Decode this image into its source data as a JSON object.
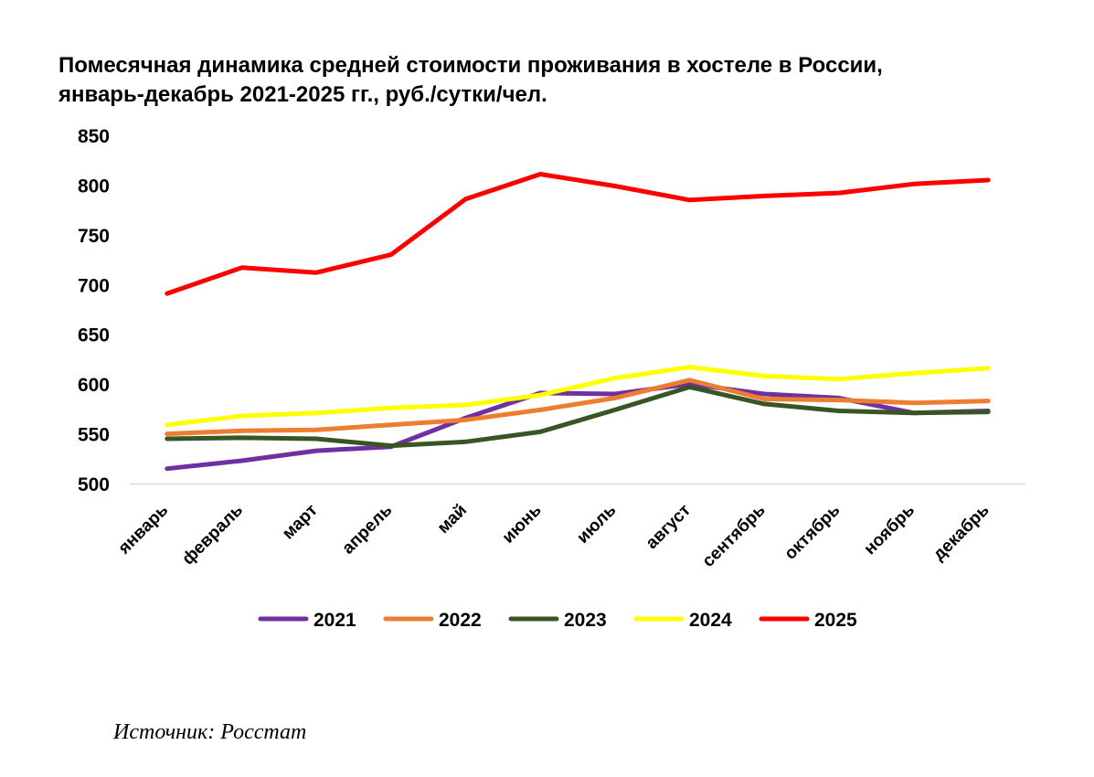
{
  "chart_data": {
    "type": "line",
    "title_lines": [
      "Помесячная динамика средней стоимости проживания в хостеле в России,",
      "январь-декабрь 2021-2025 гг., руб./сутки/чел."
    ],
    "xlabel": "",
    "ylabel": "",
    "categories": [
      "январь",
      "февраль",
      "март",
      "апрель",
      "май",
      "июнь",
      "июль",
      "август",
      "сентябрь",
      "октябрь",
      "ноябрь",
      "декабрь"
    ],
    "ylim": [
      500,
      850
    ],
    "yticks": [
      500,
      550,
      600,
      650,
      700,
      750,
      800,
      850
    ],
    "grid": false,
    "legend_position": "bottom",
    "series": [
      {
        "name": "2021",
        "color": "#7030A0",
        "values": [
          515,
          523,
          533,
          537,
          566,
          591,
          590,
          600,
          590,
          586,
          571,
          573
        ]
      },
      {
        "name": "2022",
        "color": "#ED7D31",
        "values": [
          550,
          553,
          554,
          559,
          564,
          574,
          586,
          604,
          585,
          584,
          581,
          583
        ]
      },
      {
        "name": "2023",
        "color": "#375623",
        "values": [
          545,
          546,
          545,
          538,
          542,
          552,
          574,
          597,
          580,
          573,
          571,
          572
        ]
      },
      {
        "name": "2024",
        "color": "#FFFF00",
        "values": [
          559,
          568,
          571,
          576,
          579,
          589,
          606,
          617,
          608,
          605,
          611,
          616
        ]
      },
      {
        "name": "2025",
        "color": "#FF0000",
        "values": [
          691,
          717,
          712,
          730,
          786,
          811,
          799,
          785,
          789,
          792,
          801,
          805
        ]
      }
    ]
  },
  "source": "Источник: Росстат"
}
